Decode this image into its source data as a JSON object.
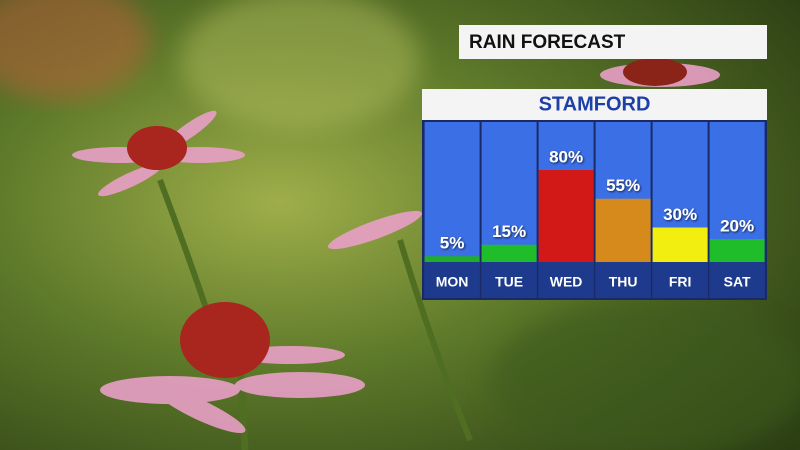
{
  "chart_data": {
    "type": "bar",
    "title": "RAIN FORECAST",
    "subtitle": "STAMFORD",
    "categories": [
      "MON",
      "TUE",
      "WED",
      "THU",
      "FRI",
      "SAT"
    ],
    "values": [
      5,
      15,
      80,
      55,
      30,
      20
    ],
    "value_labels": [
      "5%",
      "15%",
      "80%",
      "55%",
      "30%",
      "20%"
    ],
    "colors": [
      "#1fae2a",
      "#1fbd2a",
      "#d31818",
      "#d68a1c",
      "#f2ee10",
      "#1fbd2a"
    ]
  }
}
